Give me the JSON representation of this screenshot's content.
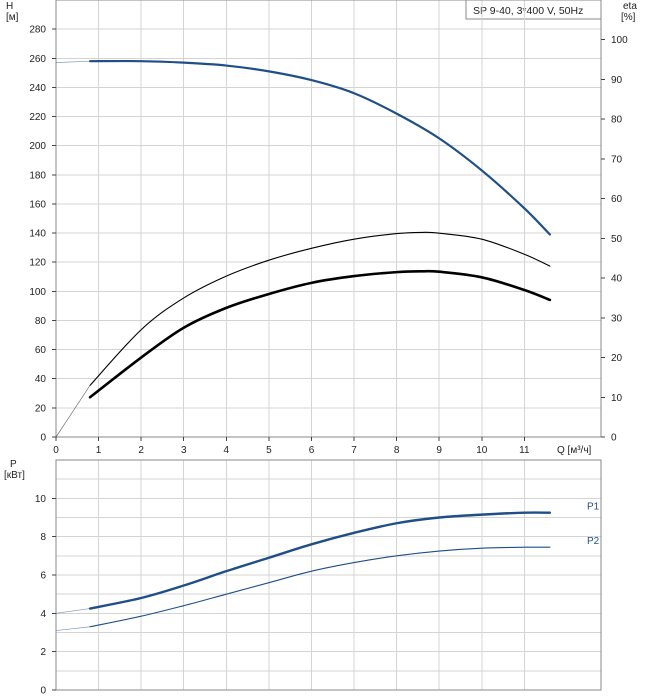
{
  "colors": {
    "head": "#1f4e89",
    "power": "#1f4e89",
    "efficiency": "#000000",
    "grid": "#d4d4d4"
  },
  "chart_data": [
    {
      "type": "line",
      "title": "SP 9-40, 3*400 V, 50Hz",
      "xlabel": "Q [м³/ч]",
      "ylabel_left": "H\n[м]",
      "ylabel_right": "eta\n[%]",
      "xlim": [
        0,
        12.8
      ],
      "ylim_left": [
        0,
        300
      ],
      "ylim_right": [
        0,
        110
      ],
      "x_ticks": [
        "0",
        "1",
        "2",
        "3",
        "4",
        "5",
        "6",
        "7",
        "8",
        "9",
        "10",
        "11"
      ],
      "y_ticks_left": [
        "0",
        "20",
        "40",
        "60",
        "80",
        "100",
        "120",
        "140",
        "160",
        "180",
        "200",
        "220",
        "240",
        "260",
        "280"
      ],
      "y_ticks_right": [
        "0",
        "10",
        "20",
        "30",
        "40",
        "50",
        "60",
        "70",
        "80",
        "90",
        "100"
      ],
      "grid": true,
      "series": [
        {
          "axis": "left",
          "style": "head",
          "x": [
            0,
            0.8,
            2.0,
            3.0,
            4.0,
            5.0,
            6.0,
            7.0,
            8.0,
            9.0,
            10.0,
            11.0,
            11.6
          ],
          "y": [
            257,
            258,
            258,
            257,
            255,
            251,
            245,
            236,
            222,
            205,
            183,
            157,
            139
          ]
        },
        {
          "axis": "right",
          "style": "efficiency_thin",
          "x": [
            0,
            0.8,
            2.0,
            3.0,
            4.0,
            5.0,
            6.0,
            7.0,
            8.0,
            8.6,
            9.0,
            10.0,
            11.0,
            11.6
          ],
          "y": [
            0,
            13,
            27,
            35,
            40.5,
            44.5,
            47.5,
            49.8,
            51.2,
            51.5,
            51.3,
            49.8,
            46,
            43
          ]
        },
        {
          "axis": "right",
          "style": "efficiency_thick",
          "x": [
            0.8,
            2.0,
            3.0,
            4.0,
            5.0,
            6.0,
            7.0,
            8.0,
            8.6,
            9.0,
            10.0,
            11.0,
            11.6
          ],
          "y": [
            10,
            20,
            27.5,
            32.5,
            36,
            38.8,
            40.5,
            41.5,
            41.7,
            41.6,
            40.2,
            37,
            34.5
          ]
        }
      ]
    },
    {
      "type": "line",
      "ylabel": "P\n[кВт]",
      "xlim": [
        0,
        12.8
      ],
      "ylim": [
        0,
        12
      ],
      "y_ticks": [
        "0",
        "2",
        "4",
        "6",
        "8",
        "10"
      ],
      "grid": true,
      "series": [
        {
          "name": "P1",
          "style": "power_thick",
          "x": [
            0,
            0.8,
            2.0,
            3.0,
            4.0,
            5.0,
            6.0,
            7.0,
            8.0,
            9.0,
            10.0,
            11.0,
            11.6
          ],
          "y": [
            4.0,
            4.25,
            4.8,
            5.45,
            6.2,
            6.9,
            7.6,
            8.2,
            8.7,
            9.0,
            9.15,
            9.25,
            9.25
          ]
        },
        {
          "name": "P2",
          "style": "power_thin",
          "x": [
            0,
            0.8,
            2.0,
            3.0,
            4.0,
            5.0,
            6.0,
            7.0,
            8.0,
            9.0,
            10.0,
            11.0,
            11.6
          ],
          "y": [
            3.1,
            3.3,
            3.85,
            4.4,
            5.0,
            5.6,
            6.2,
            6.65,
            7.0,
            7.25,
            7.4,
            7.45,
            7.45
          ]
        }
      ]
    }
  ]
}
